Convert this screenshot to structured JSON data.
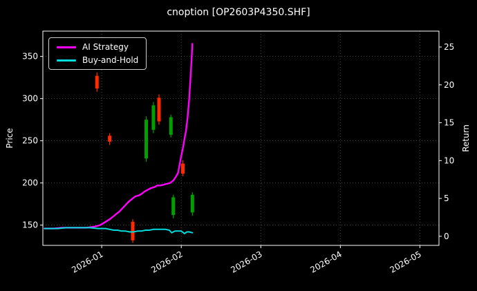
{
  "chart_data": {
    "type": "mixed",
    "subtypes": [
      "line",
      "candlestick"
    ],
    "title": "cnoption [OP2603P4350.SHF]",
    "ylabel_left": "Price",
    "ylabel_right": "Return",
    "background": "#000000",
    "grid": true,
    "grid_style": "dotted",
    "legend_position": "upper-left",
    "x_tick_labels": [
      "2026-01",
      "2026-02",
      "2026-03",
      "2026-04",
      "2026-05"
    ],
    "x_tick_positions": [
      0,
      1,
      2,
      3,
      4
    ],
    "x_range": [
      -0.74,
      4.24
    ],
    "y_left_ticks": [
      150,
      200,
      250,
      300,
      350
    ],
    "y_left_range": [
      126,
      380
    ],
    "y_right_ticks": [
      0,
      5,
      10,
      15,
      20,
      25
    ],
    "y_right_range": [
      -1.2,
      27.1
    ],
    "candle_colors": {
      "up": "#00a000",
      "down": "#ff2a00"
    },
    "series": [
      {
        "name": "AI Strategy",
        "color": "#ff00ff",
        "axis": "left",
        "points": [
          [
            -0.72,
            146
          ],
          [
            -0.6,
            146
          ],
          [
            -0.5,
            147
          ],
          [
            -0.4,
            147
          ],
          [
            -0.3,
            147
          ],
          [
            -0.2,
            147
          ],
          [
            -0.1,
            148
          ],
          [
            -0.02,
            150
          ],
          [
            0.05,
            154
          ],
          [
            0.1,
            157
          ],
          [
            0.14,
            160
          ],
          [
            0.18,
            163
          ],
          [
            0.22,
            166
          ],
          [
            0.26,
            170
          ],
          [
            0.3,
            174
          ],
          [
            0.34,
            178
          ],
          [
            0.38,
            181
          ],
          [
            0.42,
            184
          ],
          [
            0.46,
            185
          ],
          [
            0.5,
            187
          ],
          [
            0.54,
            190
          ],
          [
            0.58,
            192
          ],
          [
            0.62,
            194
          ],
          [
            0.66,
            195
          ],
          [
            0.7,
            197
          ],
          [
            0.74,
            197
          ],
          [
            0.78,
            198
          ],
          [
            0.82,
            199
          ],
          [
            0.86,
            200
          ],
          [
            0.9,
            203
          ],
          [
            0.93,
            207
          ],
          [
            0.96,
            212
          ],
          [
            0.98,
            222
          ],
          [
            1.0,
            232
          ],
          [
            1.02,
            241
          ],
          [
            1.04,
            252
          ],
          [
            1.06,
            262
          ],
          [
            1.08,
            278
          ],
          [
            1.1,
            300
          ],
          [
            1.12,
            330
          ],
          [
            1.13,
            348
          ],
          [
            1.14,
            365
          ]
        ]
      },
      {
        "name": "Buy-and-Hold",
        "color": "#00dddd",
        "axis": "left",
        "points": [
          [
            -0.72,
            146
          ],
          [
            -0.55,
            146
          ],
          [
            -0.45,
            147
          ],
          [
            -0.35,
            147
          ],
          [
            -0.25,
            147
          ],
          [
            -0.15,
            147
          ],
          [
            -0.05,
            146
          ],
          [
            0.05,
            146
          ],
          [
            0.1,
            145
          ],
          [
            0.15,
            144
          ],
          [
            0.2,
            144
          ],
          [
            0.25,
            143
          ],
          [
            0.3,
            143
          ],
          [
            0.35,
            142
          ],
          [
            0.4,
            142
          ],
          [
            0.45,
            143
          ],
          [
            0.5,
            143
          ],
          [
            0.55,
            144
          ],
          [
            0.6,
            144
          ],
          [
            0.65,
            145
          ],
          [
            0.7,
            145
          ],
          [
            0.75,
            145
          ],
          [
            0.8,
            145
          ],
          [
            0.85,
            144
          ],
          [
            0.88,
            141
          ],
          [
            0.92,
            143
          ],
          [
            0.96,
            143
          ],
          [
            1.0,
            143
          ],
          [
            1.04,
            140
          ],
          [
            1.07,
            142
          ],
          [
            1.1,
            142
          ],
          [
            1.14,
            141
          ]
        ]
      }
    ],
    "candles": [
      {
        "t": -0.06,
        "open": 327,
        "high": 331,
        "low": 308,
        "close": 312
      },
      {
        "t": 0.1,
        "open": 256,
        "high": 259,
        "low": 245,
        "close": 249
      },
      {
        "t": 0.39,
        "open": 154,
        "high": 157,
        "low": 129,
        "close": 132
      },
      {
        "t": 0.56,
        "open": 229,
        "high": 279,
        "low": 225,
        "close": 275
      },
      {
        "t": 0.65,
        "open": 263,
        "high": 296,
        "low": 259,
        "close": 292
      },
      {
        "t": 0.72,
        "open": 301,
        "high": 305,
        "low": 269,
        "close": 273
      },
      {
        "t": 0.87,
        "open": 257,
        "high": 281,
        "low": 254,
        "close": 278
      },
      {
        "t": 0.9,
        "open": 162,
        "high": 186,
        "low": 158,
        "close": 183
      },
      {
        "t": 1.02,
        "open": 223,
        "high": 227,
        "low": 208,
        "close": 211
      },
      {
        "t": 1.14,
        "open": 165,
        "high": 189,
        "low": 161,
        "close": 186
      }
    ]
  }
}
